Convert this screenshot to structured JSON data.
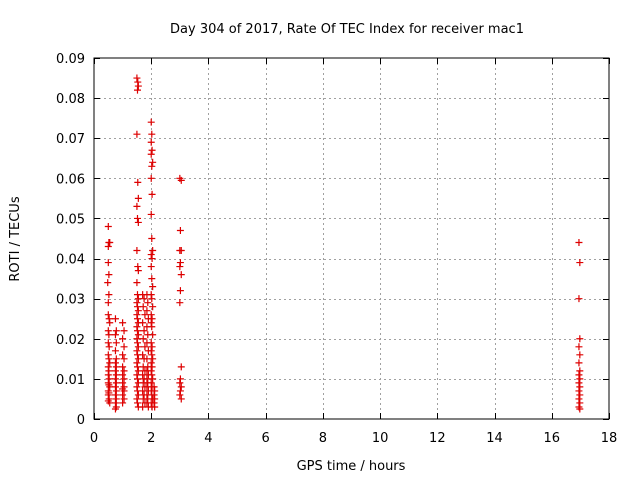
{
  "chart_data": {
    "type": "scatter",
    "title": "Day 304 of 2017, Rate Of TEC Index for receiver mac1",
    "xlabel": "GPS time / hours",
    "ylabel": "ROTI / TECUs",
    "xlim": [
      0,
      18
    ],
    "ylim": [
      0,
      0.09
    ],
    "xticks": [
      0,
      2,
      4,
      6,
      8,
      10,
      12,
      14,
      16,
      18
    ],
    "yticks": [
      0,
      0.01,
      0.02,
      0.03,
      0.04,
      0.05,
      0.06,
      0.07,
      0.08,
      0.09
    ],
    "ytick_labels": [
      "0",
      "0.01",
      "0.02",
      "0.03",
      "0.04",
      "0.05",
      "0.06",
      "0.07",
      "0.08",
      "0.09"
    ],
    "grid": true,
    "marker": "plus",
    "color": "#dd0000",
    "series": [
      {
        "name": "mac1",
        "points": [
          [
            0.5,
            0.048
          ],
          [
            0.52,
            0.044
          ],
          [
            0.5,
            0.043
          ],
          [
            0.55,
            0.044
          ],
          [
            0.5,
            0.039
          ],
          [
            0.52,
            0.036
          ],
          [
            0.48,
            0.034
          ],
          [
            0.52,
            0.031
          ],
          [
            0.5,
            0.029
          ],
          [
            0.5,
            0.026
          ],
          [
            0.53,
            0.025
          ],
          [
            0.55,
            0.024
          ],
          [
            0.5,
            0.022
          ],
          [
            0.52,
            0.021
          ],
          [
            0.5,
            0.019
          ],
          [
            0.53,
            0.018
          ],
          [
            0.5,
            0.016
          ],
          [
            0.52,
            0.015
          ],
          [
            0.55,
            0.014
          ],
          [
            0.5,
            0.013
          ],
          [
            0.52,
            0.012
          ],
          [
            0.5,
            0.011
          ],
          [
            0.53,
            0.01
          ],
          [
            0.5,
            0.009
          ],
          [
            0.52,
            0.0085
          ],
          [
            0.55,
            0.008
          ],
          [
            0.5,
            0.007
          ],
          [
            0.52,
            0.0065
          ],
          [
            0.5,
            0.006
          ],
          [
            0.53,
            0.005
          ],
          [
            0.5,
            0.0045
          ],
          [
            0.55,
            0.004
          ],
          [
            0.75,
            0.025
          ],
          [
            0.78,
            0.022
          ],
          [
            0.75,
            0.021
          ],
          [
            0.78,
            0.019
          ],
          [
            0.75,
            0.017
          ],
          [
            0.78,
            0.015
          ],
          [
            0.75,
            0.014
          ],
          [
            0.78,
            0.013
          ],
          [
            0.75,
            0.012
          ],
          [
            0.78,
            0.011
          ],
          [
            0.75,
            0.01
          ],
          [
            0.78,
            0.009
          ],
          [
            0.75,
            0.008
          ],
          [
            0.78,
            0.007
          ],
          [
            0.75,
            0.006
          ],
          [
            0.78,
            0.005
          ],
          [
            0.75,
            0.004
          ],
          [
            0.78,
            0.003
          ],
          [
            0.75,
            0.0025
          ],
          [
            1.0,
            0.024
          ],
          [
            1.05,
            0.022
          ],
          [
            1.0,
            0.02
          ],
          [
            1.05,
            0.018
          ],
          [
            1.0,
            0.016
          ],
          [
            1.05,
            0.015
          ],
          [
            1.0,
            0.013
          ],
          [
            1.05,
            0.012
          ],
          [
            1.0,
            0.011
          ],
          [
            1.05,
            0.01
          ],
          [
            1.0,
            0.009
          ],
          [
            1.05,
            0.008
          ],
          [
            1.0,
            0.0075
          ],
          [
            1.05,
            0.007
          ],
          [
            1.0,
            0.006
          ],
          [
            1.05,
            0.005
          ],
          [
            1.0,
            0.004
          ],
          [
            1.5,
            0.085
          ],
          [
            1.53,
            0.084
          ],
          [
            1.55,
            0.083
          ],
          [
            1.52,
            0.082
          ],
          [
            1.5,
            0.071
          ],
          [
            1.53,
            0.059
          ],
          [
            1.55,
            0.055
          ],
          [
            1.5,
            0.053
          ],
          [
            1.52,
            0.05
          ],
          [
            1.55,
            0.049
          ],
          [
            1.5,
            0.042
          ],
          [
            1.53,
            0.038
          ],
          [
            1.55,
            0.037
          ],
          [
            1.5,
            0.034
          ],
          [
            1.52,
            0.031
          ],
          [
            1.55,
            0.03
          ],
          [
            1.5,
            0.029
          ],
          [
            1.52,
            0.028
          ],
          [
            1.55,
            0.027
          ],
          [
            1.5,
            0.026
          ],
          [
            1.52,
            0.025
          ],
          [
            1.55,
            0.024
          ],
          [
            1.5,
            0.023
          ],
          [
            1.52,
            0.022
          ],
          [
            1.55,
            0.021
          ],
          [
            1.5,
            0.02
          ],
          [
            1.52,
            0.019
          ],
          [
            1.55,
            0.018
          ],
          [
            1.5,
            0.017
          ],
          [
            1.52,
            0.016
          ],
          [
            1.55,
            0.015
          ],
          [
            1.5,
            0.014
          ],
          [
            1.52,
            0.013
          ],
          [
            1.55,
            0.012
          ],
          [
            1.5,
            0.011
          ],
          [
            1.52,
            0.01
          ],
          [
            1.55,
            0.009
          ],
          [
            1.5,
            0.008
          ],
          [
            1.52,
            0.007
          ],
          [
            1.55,
            0.006
          ],
          [
            1.5,
            0.005
          ],
          [
            1.52,
            0.004
          ],
          [
            1.55,
            0.003
          ],
          [
            1.7,
            0.031
          ],
          [
            1.75,
            0.03
          ],
          [
            1.72,
            0.028
          ],
          [
            1.78,
            0.026
          ],
          [
            1.7,
            0.024
          ],
          [
            1.75,
            0.022
          ],
          [
            1.72,
            0.02
          ],
          [
            1.78,
            0.018
          ],
          [
            1.7,
            0.016
          ],
          [
            1.75,
            0.015
          ],
          [
            1.72,
            0.013
          ],
          [
            1.78,
            0.012
          ],
          [
            1.7,
            0.011
          ],
          [
            1.75,
            0.01
          ],
          [
            1.72,
            0.009
          ],
          [
            1.78,
            0.008
          ],
          [
            1.7,
            0.007
          ],
          [
            1.75,
            0.006
          ],
          [
            1.72,
            0.005
          ],
          [
            1.78,
            0.004
          ],
          [
            1.7,
            0.003
          ],
          [
            1.85,
            0.031
          ],
          [
            1.88,
            0.029
          ],
          [
            1.85,
            0.027
          ],
          [
            1.9,
            0.025
          ],
          [
            1.85,
            0.023
          ],
          [
            1.88,
            0.021
          ],
          [
            1.85,
            0.019
          ],
          [
            1.9,
            0.017
          ],
          [
            1.85,
            0.015
          ],
          [
            1.88,
            0.013
          ],
          [
            1.85,
            0.012
          ],
          [
            1.9,
            0.011
          ],
          [
            1.85,
            0.01
          ],
          [
            1.88,
            0.009
          ],
          [
            1.85,
            0.008
          ],
          [
            1.9,
            0.007
          ],
          [
            1.85,
            0.006
          ],
          [
            1.88,
            0.005
          ],
          [
            1.85,
            0.004
          ],
          [
            1.9,
            0.003
          ],
          [
            2.0,
            0.074
          ],
          [
            2.02,
            0.071
          ],
          [
            2.0,
            0.069
          ],
          [
            2.03,
            0.067
          ],
          [
            2.0,
            0.066
          ],
          [
            2.05,
            0.064
          ],
          [
            2.02,
            0.063
          ],
          [
            2.0,
            0.06
          ],
          [
            2.03,
            0.056
          ],
          [
            2.0,
            0.051
          ],
          [
            2.02,
            0.045
          ],
          [
            2.05,
            0.042
          ],
          [
            2.0,
            0.041
          ],
          [
            2.03,
            0.04
          ],
          [
            2.0,
            0.038
          ],
          [
            2.02,
            0.035
          ],
          [
            2.05,
            0.033
          ],
          [
            2.0,
            0.031
          ],
          [
            2.02,
            0.03
          ],
          [
            2.05,
            0.028
          ],
          [
            2.0,
            0.026
          ],
          [
            2.03,
            0.025
          ],
          [
            2.0,
            0.024
          ],
          [
            2.02,
            0.023
          ],
          [
            2.05,
            0.021
          ],
          [
            2.0,
            0.019
          ],
          [
            2.03,
            0.018
          ],
          [
            2.0,
            0.017
          ],
          [
            2.02,
            0.016
          ],
          [
            2.05,
            0.015
          ],
          [
            2.0,
            0.014
          ],
          [
            2.03,
            0.013
          ],
          [
            2.0,
            0.012
          ],
          [
            2.02,
            0.011
          ],
          [
            2.05,
            0.01
          ],
          [
            2.0,
            0.009
          ],
          [
            2.03,
            0.008
          ],
          [
            2.0,
            0.007
          ],
          [
            2.02,
            0.006
          ],
          [
            2.05,
            0.005
          ],
          [
            2.0,
            0.004
          ],
          [
            2.03,
            0.003
          ],
          [
            2.1,
            0.008
          ],
          [
            2.12,
            0.007
          ],
          [
            2.1,
            0.006
          ],
          [
            2.12,
            0.005
          ],
          [
            2.1,
            0.004
          ],
          [
            2.12,
            0.003
          ],
          [
            3.0,
            0.06
          ],
          [
            3.05,
            0.0595
          ],
          [
            3.02,
            0.047
          ],
          [
            3.0,
            0.042
          ],
          [
            3.05,
            0.042
          ],
          [
            3.02,
            0.039
          ],
          [
            3.0,
            0.038
          ],
          [
            3.05,
            0.036
          ],
          [
            3.02,
            0.032
          ],
          [
            3.0,
            0.029
          ],
          [
            3.05,
            0.013
          ],
          [
            3.02,
            0.01
          ],
          [
            3.0,
            0.009
          ],
          [
            3.05,
            0.008
          ],
          [
            3.02,
            0.007
          ],
          [
            3.0,
            0.006
          ],
          [
            3.05,
            0.005
          ],
          [
            16.95,
            0.044
          ],
          [
            16.98,
            0.039
          ],
          [
            16.95,
            0.03
          ],
          [
            16.98,
            0.02
          ],
          [
            16.95,
            0.018
          ],
          [
            16.98,
            0.016
          ],
          [
            16.95,
            0.014
          ],
          [
            16.98,
            0.012
          ],
          [
            16.95,
            0.011
          ],
          [
            16.98,
            0.01
          ],
          [
            16.95,
            0.009
          ],
          [
            16.98,
            0.008
          ],
          [
            16.95,
            0.007
          ],
          [
            16.98,
            0.006
          ],
          [
            16.95,
            0.005
          ],
          [
            16.98,
            0.004
          ],
          [
            16.95,
            0.003
          ],
          [
            16.98,
            0.0025
          ]
        ]
      }
    ]
  }
}
